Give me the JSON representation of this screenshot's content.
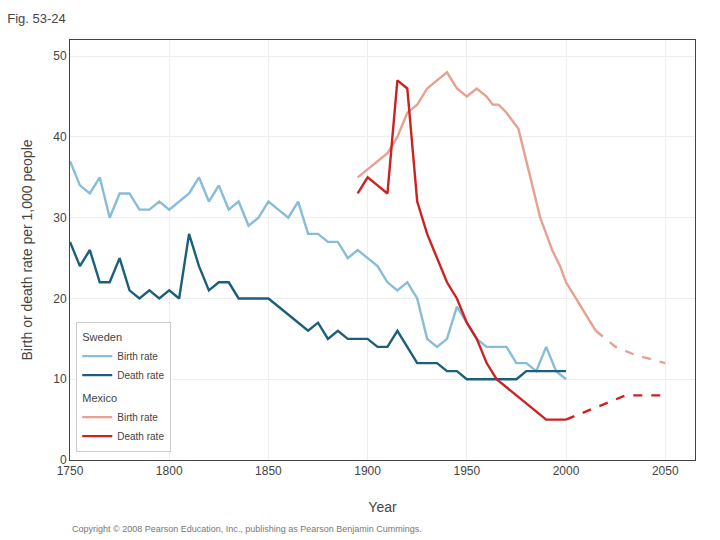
{
  "chart_data": {
    "type": "line",
    "title": "Fig. 53-24",
    "xlabel": "Year",
    "ylabel": "Birth or death rate per 1,000 people",
    "xlim": [
      1750,
      2065
    ],
    "ylim": [
      0,
      52
    ],
    "xticks": [
      1750,
      1800,
      1850,
      1900,
      1950,
      2000,
      2050
    ],
    "yticks": [
      0,
      10,
      20,
      30,
      40,
      50
    ],
    "grid": true,
    "legend": "lower left",
    "annotations": [
      "Copyright © 2008 Pearson Education, Inc., publishing as Pearson Benjamin Cummings."
    ],
    "series": [
      {
        "name": "Birth rate",
        "group": "Sweden",
        "color": "#87bdd8",
        "line_style": "solid",
        "x": [
          1750,
          1755,
          1760,
          1765,
          1770,
          1775,
          1780,
          1785,
          1790,
          1795,
          1800,
          1805,
          1810,
          1815,
          1820,
          1825,
          1830,
          1835,
          1840,
          1845,
          1850,
          1855,
          1860,
          1865,
          1870,
          1875,
          1880,
          1885,
          1890,
          1895,
          1900,
          1905,
          1910,
          1915,
          1920,
          1925,
          1930,
          1935,
          1940,
          1945,
          1950,
          1955,
          1960,
          1965,
          1970,
          1975,
          1980,
          1985,
          1990,
          1995,
          2000
        ],
        "values": [
          37,
          34,
          33,
          35,
          30,
          33,
          33,
          31,
          31,
          32,
          31,
          32,
          33,
          35,
          32,
          34,
          31,
          32,
          29,
          30,
          32,
          31,
          30,
          32,
          28,
          28,
          27,
          27,
          25,
          26,
          25,
          24,
          22,
          21,
          22,
          20,
          15,
          14,
          15,
          19,
          17,
          15,
          14,
          14,
          14,
          12,
          12,
          11,
          14,
          11,
          10
        ]
      },
      {
        "name": "Death rate",
        "group": "Sweden",
        "color": "#1c5f7a",
        "line_style": "solid",
        "x": [
          1750,
          1755,
          1760,
          1765,
          1770,
          1775,
          1780,
          1785,
          1790,
          1795,
          1800,
          1805,
          1810,
          1815,
          1820,
          1825,
          1830,
          1835,
          1840,
          1845,
          1850,
          1855,
          1860,
          1865,
          1870,
          1875,
          1880,
          1885,
          1890,
          1895,
          1900,
          1905,
          1910,
          1915,
          1920,
          1925,
          1930,
          1935,
          1940,
          1945,
          1950,
          1955,
          1960,
          1965,
          1970,
          1975,
          1980,
          1985,
          1990,
          1995,
          2000
        ],
        "values": [
          27,
          24,
          26,
          22,
          22,
          25,
          21,
          20,
          21,
          20,
          21,
          20,
          28,
          24,
          21,
          22,
          22,
          20,
          20,
          20,
          20,
          19,
          18,
          17,
          16,
          17,
          15,
          16,
          15,
          15,
          15,
          14,
          14,
          16,
          14,
          12,
          12,
          12,
          11,
          11,
          10,
          10,
          10,
          10,
          10,
          10,
          11,
          11,
          11,
          11,
          11
        ]
      },
      {
        "name": "Birth rate",
        "group": "Mexico",
        "color": "#e8a090",
        "line_style": "solid",
        "x": [
          1895,
          1900,
          1905,
          1910,
          1915,
          1920,
          1925,
          1930,
          1935,
          1940,
          1945,
          1950,
          1955,
          1960,
          1963,
          1966,
          1970,
          1973,
          1976,
          1980,
          1983,
          1987,
          1990,
          1993,
          1997,
          2000,
          2005,
          2010,
          2015
        ],
        "values": [
          35,
          36,
          37,
          38,
          40,
          43,
          44,
          46,
          47,
          48,
          46,
          45,
          46,
          45,
          44,
          44,
          43,
          42,
          41,
          37,
          34,
          30,
          28,
          26,
          24,
          22,
          20,
          18,
          16
        ]
      },
      {
        "group": "Mexico",
        "color": "#e8a090",
        "line_style": "dashed",
        "x": [
          2015,
          2025,
          2035,
          2050
        ],
        "values": [
          16,
          14,
          13,
          12
        ]
      },
      {
        "name": "Death rate",
        "group": "Mexico",
        "color": "#cc2222",
        "line_style": "solid",
        "x": [
          1895,
          1900,
          1905,
          1910,
          1915,
          1920,
          1925,
          1930,
          1935,
          1940,
          1945,
          1950,
          1955,
          1960,
          1965,
          1970,
          1975,
          1980,
          1985,
          1990,
          1995,
          2000
        ],
        "values": [
          33,
          35,
          34,
          33,
          47,
          46,
          32,
          28,
          25,
          22,
          20,
          17,
          15,
          12,
          10,
          9,
          8,
          7,
          6,
          5,
          5,
          5
        ]
      },
      {
        "group": "Mexico",
        "color": "#cc2222",
        "line_style": "dashed",
        "x": [
          2000,
          2010,
          2020,
          2030,
          2040,
          2050
        ],
        "values": [
          5,
          6,
          7,
          8,
          8,
          8
        ]
      }
    ]
  }
}
